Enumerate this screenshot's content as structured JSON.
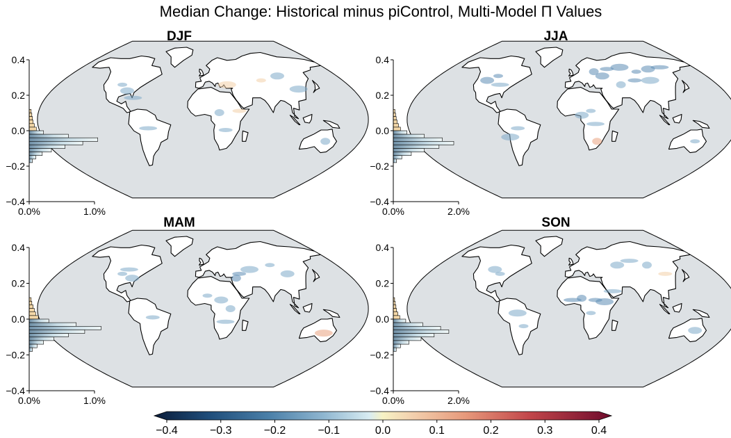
{
  "title": "Median Change: Historical minus piControl, Multi-Model Π Values",
  "colors": {
    "ocean": "#dde1e4",
    "land": "#ffffff",
    "coast": "#000000",
    "cool": "#7ea9c9",
    "warm": "#e9a27f",
    "hist_neg": "#a9c4d6",
    "hist_pos": "#f3d7a8"
  },
  "chart_data": [
    {
      "type": "map",
      "season": "DJF",
      "y_ticks": [
        "0.4",
        "0.2",
        "0.0",
        "−0.2",
        "−0.4"
      ],
      "x_ticks": [
        "0.0%",
        "1.0%"
      ],
      "ylim": [
        -0.4,
        0.4
      ],
      "hist_xmax": 1.0,
      "histogram": [
        {
          "y": 0.11,
          "p": 0.03
        },
        {
          "y": 0.09,
          "p": 0.04
        },
        {
          "y": 0.07,
          "p": 0.05
        },
        {
          "y": 0.05,
          "p": 0.06
        },
        {
          "y": 0.03,
          "p": 0.08
        },
        {
          "y": 0.01,
          "p": 0.11
        },
        {
          "y": -0.01,
          "p": 0.22
        },
        {
          "y": -0.03,
          "p": 0.6
        },
        {
          "y": -0.05,
          "p": 1.05
        },
        {
          "y": -0.07,
          "p": 0.82
        },
        {
          "y": -0.09,
          "p": 0.55
        },
        {
          "y": -0.11,
          "p": 0.34
        },
        {
          "y": -0.13,
          "p": 0.2
        },
        {
          "y": -0.15,
          "p": 0.1
        },
        {
          "y": -0.17,
          "p": 0.05
        }
      ],
      "dots": [
        [
          -100,
          40,
          -0.12
        ],
        [
          -90,
          33,
          -0.1
        ],
        [
          -60,
          -10,
          -0.08
        ],
        [
          18,
          8,
          -0.1
        ],
        [
          25,
          -12,
          -0.12
        ],
        [
          30,
          40,
          0.06
        ],
        [
          75,
          45,
          0.05
        ],
        [
          100,
          50,
          -0.08
        ],
        [
          -80,
          25,
          -0.15
        ],
        [
          140,
          -25,
          -0.1
        ],
        [
          40,
          10,
          0.08
        ],
        [
          115,
          35,
          -0.1
        ]
      ]
    },
    {
      "type": "map",
      "season": "JJA",
      "y_ticks": [
        "0.4",
        "0.2",
        "0.0",
        "−0.2",
        "−0.4"
      ],
      "x_ticks": [
        "0.0%",
        "2.0%"
      ],
      "ylim": [
        -0.4,
        0.4
      ],
      "hist_xmax": 2.0,
      "histogram": [
        {
          "y": 0.11,
          "p": 0.05
        },
        {
          "y": 0.09,
          "p": 0.07
        },
        {
          "y": 0.07,
          "p": 0.09
        },
        {
          "y": 0.05,
          "p": 0.12
        },
        {
          "y": 0.03,
          "p": 0.16
        },
        {
          "y": 0.01,
          "p": 0.22
        },
        {
          "y": -0.01,
          "p": 0.42
        },
        {
          "y": -0.03,
          "p": 0.95
        },
        {
          "y": -0.05,
          "p": 1.5
        },
        {
          "y": -0.07,
          "p": 1.85
        },
        {
          "y": -0.09,
          "p": 1.4
        },
        {
          "y": -0.11,
          "p": 0.95
        },
        {
          "y": -0.13,
          "p": 0.55
        },
        {
          "y": -0.15,
          "p": 0.26
        },
        {
          "y": -0.17,
          "p": 0.1
        }
      ],
      "dots": [
        [
          -100,
          50,
          -0.2
        ],
        [
          -110,
          45,
          -0.18
        ],
        [
          -90,
          40,
          -0.15
        ],
        [
          30,
          55,
          -0.2
        ],
        [
          50,
          58,
          -0.22
        ],
        [
          70,
          60,
          -0.25
        ],
        [
          90,
          55,
          -0.22
        ],
        [
          110,
          58,
          -0.2
        ],
        [
          130,
          60,
          -0.18
        ],
        [
          60,
          40,
          -0.15
        ],
        [
          80,
          45,
          -0.2
        ],
        [
          100,
          45,
          -0.15
        ],
        [
          20,
          10,
          -0.12
        ],
        [
          10,
          5,
          -0.1
        ],
        [
          25,
          -5,
          -0.12
        ],
        [
          28,
          -25,
          0.15
        ],
        [
          -60,
          -10,
          -0.1
        ],
        [
          -70,
          -20,
          -0.1
        ],
        [
          140,
          -25,
          -0.1
        ],
        [
          40,
          50,
          -0.2
        ]
      ]
    },
    {
      "type": "map",
      "season": "MAM",
      "y_ticks": [
        "0.4",
        "0.2",
        "0.0",
        "−0.2",
        "−0.4"
      ],
      "x_ticks": [
        "0.0%",
        "1.0%"
      ],
      "ylim": [
        -0.4,
        0.4
      ],
      "hist_xmax": 1.0,
      "histogram": [
        {
          "y": 0.11,
          "p": 0.03
        },
        {
          "y": 0.09,
          "p": 0.04
        },
        {
          "y": 0.07,
          "p": 0.06
        },
        {
          "y": 0.05,
          "p": 0.08
        },
        {
          "y": 0.03,
          "p": 0.1
        },
        {
          "y": 0.01,
          "p": 0.14
        },
        {
          "y": -0.01,
          "p": 0.3
        },
        {
          "y": -0.03,
          "p": 0.72
        },
        {
          "y": -0.05,
          "p": 1.1
        },
        {
          "y": -0.07,
          "p": 0.85
        },
        {
          "y": -0.09,
          "p": 0.6
        },
        {
          "y": -0.11,
          "p": 0.38
        },
        {
          "y": -0.13,
          "p": 0.22
        },
        {
          "y": -0.15,
          "p": 0.12
        },
        {
          "y": -0.17,
          "p": 0.05
        }
      ],
      "dots": [
        [
          -100,
          40,
          -0.15
        ],
        [
          -85,
          35,
          -0.12
        ],
        [
          -95,
          45,
          -0.14
        ],
        [
          40,
          35,
          -0.18
        ],
        [
          45,
          40,
          -0.2
        ],
        [
          60,
          45,
          -0.12
        ],
        [
          90,
          50,
          -0.12
        ],
        [
          20,
          10,
          -0.1
        ],
        [
          25,
          -15,
          -0.12
        ],
        [
          30,
          0,
          -0.1
        ],
        [
          -55,
          -10,
          -0.08
        ],
        [
          140,
          -28,
          0.12
        ],
        [
          5,
          15,
          -0.12
        ],
        [
          105,
          40,
          -0.1
        ]
      ]
    },
    {
      "type": "map",
      "season": "SON",
      "y_ticks": [
        "0.4",
        "0.2",
        "0.0",
        "−0.2",
        "−0.4"
      ],
      "x_ticks": [
        "0.0%",
        "2.0%"
      ],
      "ylim": [
        -0.4,
        0.4
      ],
      "hist_xmax": 2.0,
      "histogram": [
        {
          "y": 0.11,
          "p": 0.04
        },
        {
          "y": 0.09,
          "p": 0.06
        },
        {
          "y": 0.07,
          "p": 0.08
        },
        {
          "y": 0.05,
          "p": 0.1
        },
        {
          "y": 0.03,
          "p": 0.14
        },
        {
          "y": 0.01,
          "p": 0.2
        },
        {
          "y": -0.01,
          "p": 0.38
        },
        {
          "y": -0.03,
          "p": 0.9
        },
        {
          "y": -0.05,
          "p": 1.45
        },
        {
          "y": -0.07,
          "p": 1.7
        },
        {
          "y": -0.09,
          "p": 1.25
        },
        {
          "y": -0.11,
          "p": 0.85
        },
        {
          "y": -0.13,
          "p": 0.48
        },
        {
          "y": -0.15,
          "p": 0.22
        },
        {
          "y": -0.17,
          "p": 0.09
        }
      ],
      "dots": [
        [
          -90,
          40,
          -0.15
        ],
        [
          -100,
          45,
          -0.12
        ],
        [
          0,
          10,
          -0.2
        ],
        [
          10,
          12,
          -0.22
        ],
        [
          25,
          10,
          -0.2
        ],
        [
          35,
          8,
          -0.18
        ],
        [
          20,
          -5,
          -0.12
        ],
        [
          60,
          50,
          -0.15
        ],
        [
          80,
          55,
          -0.15
        ],
        [
          100,
          50,
          -0.12
        ],
        [
          115,
          40,
          0.06
        ],
        [
          -60,
          -5,
          -0.12
        ],
        [
          -55,
          -20,
          -0.1
        ],
        [
          140,
          -25,
          -0.08
        ],
        [
          45,
          20,
          -0.12
        ]
      ]
    }
  ],
  "colorbar": {
    "ticks": [
      "−0.4",
      "−0.3",
      "−0.2",
      "−0.1",
      "0.0",
      "0.1",
      "0.2",
      "0.3",
      "0.4"
    ],
    "range": [
      -0.4,
      0.4
    ]
  }
}
